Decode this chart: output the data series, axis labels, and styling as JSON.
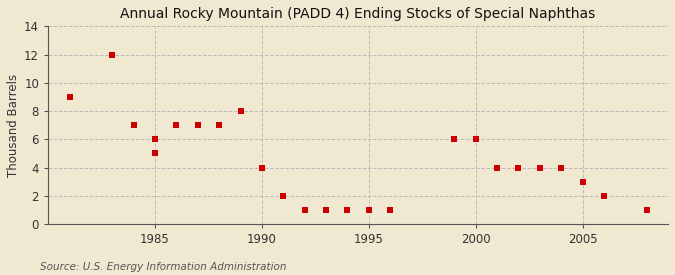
{
  "title": "Annual Rocky Mountain (PADD 4) Ending Stocks of Special Naphthas",
  "ylabel": "Thousand Barrels",
  "source": "Source: U.S. Energy Information Administration",
  "background_color": "#f0e8d0",
  "plot_background_color": "#f0e8d0",
  "marker_color": "#cc0000",
  "marker": "s",
  "marker_size": 4,
  "xlim": [
    1980,
    2009
  ],
  "ylim": [
    0,
    14
  ],
  "yticks": [
    0,
    2,
    4,
    6,
    8,
    10,
    12,
    14
  ],
  "xticks": [
    1985,
    1990,
    1995,
    2000,
    2005
  ],
  "grid_color": "#bbbbbb",
  "years": [
    1981,
    1983,
    1984,
    1985,
    1985,
    1986,
    1987,
    1988,
    1989,
    1990,
    1991,
    1992,
    1993,
    1994,
    1994,
    1995,
    1996,
    1999,
    2000,
    2001,
    2002,
    2003,
    2004,
    2005,
    2006,
    2008
  ],
  "values": [
    9,
    12,
    7,
    5,
    6,
    7,
    7,
    7,
    8,
    4,
    2,
    1,
    1,
    1,
    1,
    1,
    1,
    6,
    6,
    4,
    4,
    4,
    4,
    3,
    2,
    1
  ]
}
